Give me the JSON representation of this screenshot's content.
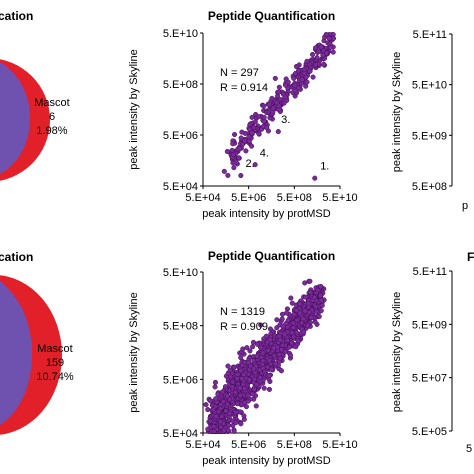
{
  "colors": {
    "point": "#7b2a9a",
    "point_edge": "#3d0d52",
    "venn_red": "#e0141e",
    "venn_blue": "#4060ff",
    "venn_overlap": "#6f52b0"
  },
  "top_row": {
    "left_title_fragment": "cation",
    "venn_label": "Mascot",
    "venn_count": "6",
    "venn_percent": "1.98%",
    "right_ticks": [
      "5.E+11",
      "5.E+10",
      "5.E+09",
      "5.E+08"
    ]
  },
  "bottom_row": {
    "left_title_fragment": "cation",
    "venn_label": "Mascot",
    "venn_count": "159",
    "venn_percent": "10.74%",
    "right_title_fragment": "F",
    "right_ticks": [
      "5.E+11",
      "5.E+09",
      "5.E+07",
      "5.E+05"
    ]
  },
  "chart_data": [
    {
      "type": "scatter",
      "title": "Peptide Quantification",
      "xlabel": "peak intensity by protMSD",
      "ylabel": "peak intensity by Skyline",
      "log_scale": true,
      "xlim": [
        50000,
        5000000000
      ],
      "ylim": [
        50000,
        5000000000
      ],
      "x_ticks": [
        "5.E+04",
        "5.E+06",
        "5.E+08",
        "5.E+10"
      ],
      "y_ticks": [
        "5.E+04",
        "5.E+06",
        "5.E+08",
        "5.E+10"
      ],
      "stats": {
        "n": "N = 297",
        "r": "R = 0.914"
      },
      "annotations": [
        {
          "text": "1.",
          "x": 800000000,
          "y": 150000
        },
        {
          "text": "2.",
          "x": 1500000,
          "y": 180000
        },
        {
          "text": "3.",
          "x": 30000000,
          "y": 5000000
        },
        {
          "text": "4.",
          "x": 5000000,
          "y": 400000
        }
      ],
      "series": [
        {
          "n": 297,
          "x_range": [
            500000,
            3000000000
          ],
          "y_offset": 0,
          "spread": 0.23
        }
      ],
      "outliers": [
        [
          600000000,
          90000
        ],
        [
          1200000,
          110000
        ],
        [
          4000000,
          250000
        ],
        [
          28000000,
          3000000
        ],
        [
          300000,
          150000
        ]
      ]
    },
    {
      "type": "scatter",
      "title": "Peptide Quantification",
      "xlabel": "peak intensity by protMSD",
      "ylabel": "peak intensity by Skyline",
      "log_scale": true,
      "xlim": [
        50000,
        5000000000
      ],
      "ylim": [
        50000,
        5000000000
      ],
      "x_ticks": [
        "5.E+04",
        "5.E+06",
        "5.E+08",
        "5.E+10"
      ],
      "y_ticks": [
        "5.E+04",
        "5.E+06",
        "5.E+08",
        "5.E+10"
      ],
      "stats": {
        "n": "N = 1319",
        "r": "R = 0.909"
      },
      "annotations": [],
      "series": [
        {
          "n": 1319,
          "x_range": [
            100000,
            1000000000
          ],
          "y_offset": 0,
          "spread": 0.42
        }
      ],
      "outliers": []
    }
  ]
}
